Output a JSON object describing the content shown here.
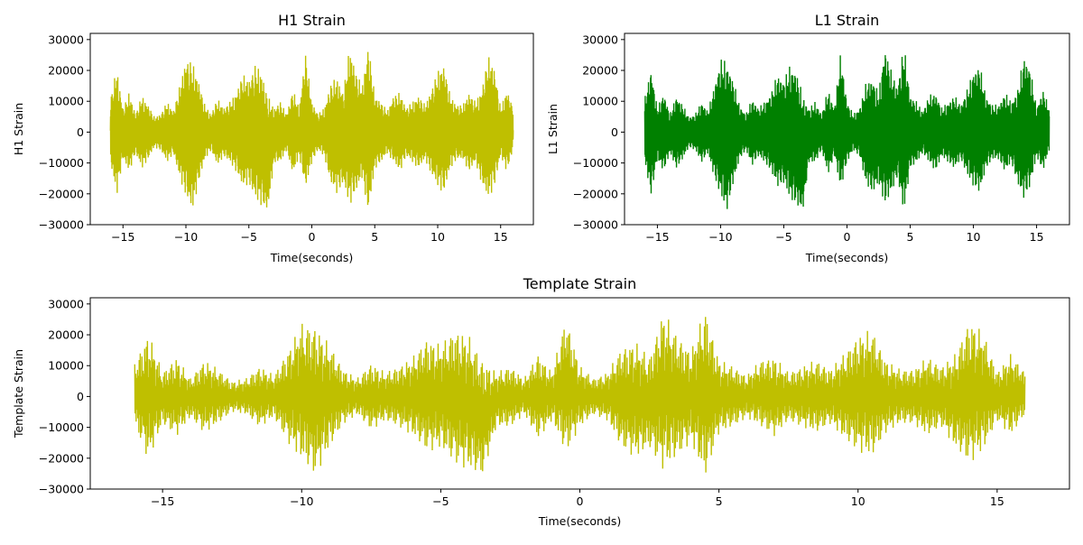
{
  "chart_data": [
    {
      "type": "line",
      "title": "H1 Strain",
      "xlabel": "Time(seconds)",
      "ylabel": "H1 Strain",
      "xlim": [
        -17.6,
        17.6
      ],
      "ylim": [
        -30000,
        32000
      ],
      "xticks": [
        -15,
        -10,
        -5,
        0,
        5,
        10,
        15
      ],
      "yticks": [
        -30000,
        -20000,
        -10000,
        0,
        10000,
        20000,
        30000
      ],
      "xtick_labels": [
        "−15",
        "−10",
        "−5",
        "0",
        "5",
        "10",
        "15"
      ],
      "ytick_labels": [
        "−30000",
        "−20000",
        "−10000",
        "0",
        "10000",
        "20000",
        "30000"
      ],
      "grid": false,
      "color": "#bfbf00",
      "series": [
        {
          "x": [
            -16,
            -15.5,
            -15,
            -14.5,
            -14,
            -13.5,
            -13,
            -12.5,
            -12,
            -11.5,
            -11,
            -10.5,
            -10,
            -9.5,
            -9,
            -8.5,
            -8,
            -7.5,
            -7,
            -6.5,
            -6,
            -5.5,
            -5,
            -4.5,
            -4,
            -3.5,
            -3,
            -2.5,
            -2,
            -1.5,
            -1,
            -0.5,
            0,
            0.5,
            1,
            1.5,
            2,
            2.5,
            3,
            3.5,
            4,
            4.5,
            5,
            5.5,
            6,
            6.5,
            7,
            7.5,
            8,
            8.5,
            9,
            9.5,
            10,
            10.5,
            11,
            11.5,
            12,
            12.5,
            13,
            13.5,
            14,
            14.5,
            15,
            15.5,
            16
          ],
          "y_max": [
            11000,
            21000,
            8000,
            13000,
            6000,
            12000,
            9000,
            5000,
            6000,
            10000,
            7000,
            15000,
            24000,
            23000,
            17000,
            9000,
            6000,
            11000,
            8000,
            10000,
            13000,
            19000,
            17000,
            22000,
            20000,
            12000,
            8000,
            10000,
            6000,
            14000,
            8000,
            26000,
            10000,
            6000,
            8000,
            16000,
            18000,
            13000,
            28000,
            20000,
            15000,
            29000,
            12000,
            10000,
            7000,
            12000,
            13000,
            8000,
            10000,
            12000,
            9000,
            14000,
            20000,
            22000,
            12000,
            9000,
            9000,
            13000,
            10000,
            14000,
            25000,
            21000,
            8000,
            14000,
            8000
          ],
          "y_min": [
            -10000,
            -21000,
            -9000,
            -13000,
            -7000,
            -12000,
            -9000,
            -5000,
            -6000,
            -10000,
            -7000,
            -15000,
            -21000,
            -26000,
            -17000,
            -9000,
            -6000,
            -11000,
            -8000,
            -10000,
            -13000,
            -18000,
            -17000,
            -22000,
            -24000,
            -26000,
            -10000,
            -10000,
            -6000,
            -14000,
            -8000,
            -19000,
            -10000,
            -6000,
            -8000,
            -17000,
            -20000,
            -17000,
            -24000,
            -20000,
            -15000,
            -27000,
            -12000,
            -10000,
            -7000,
            -10000,
            -13000,
            -8000,
            -10000,
            -12000,
            -9000,
            -14000,
            -18000,
            -20000,
            -12000,
            -9000,
            -9000,
            -13000,
            -10000,
            -17000,
            -22000,
            -18000,
            -8000,
            -13000,
            -6000
          ]
        }
      ]
    },
    {
      "type": "line",
      "title": "L1 Strain",
      "xlabel": "Time(seconds)",
      "ylabel": "L1 Strain",
      "xlim": [
        -17.6,
        17.6
      ],
      "ylim": [
        -30000,
        32000
      ],
      "xticks": [
        -15,
        -10,
        -5,
        0,
        5,
        10,
        15
      ],
      "yticks": [
        -30000,
        -20000,
        -10000,
        0,
        10000,
        20000,
        30000
      ],
      "xtick_labels": [
        "−15",
        "−10",
        "−5",
        "0",
        "5",
        "10",
        "15"
      ],
      "ytick_labels": [
        "−30000",
        "−20000",
        "−10000",
        "0",
        "10000",
        "20000",
        "30000"
      ],
      "grid": false,
      "color": "#008000",
      "series": [
        {
          "x": [
            -16,
            -15.5,
            -15,
            -14.5,
            -14,
            -13.5,
            -13,
            -12.5,
            -12,
            -11.5,
            -11,
            -10.5,
            -10,
            -9.5,
            -9,
            -8.5,
            -8,
            -7.5,
            -7,
            -6.5,
            -6,
            -5.5,
            -5,
            -4.5,
            -4,
            -3.5,
            -3,
            -2.5,
            -2,
            -1.5,
            -1,
            -0.5,
            0,
            0.5,
            1,
            1.5,
            2,
            2.5,
            3,
            3.5,
            4,
            4.5,
            5,
            5.5,
            6,
            6.5,
            7,
            7.5,
            8,
            8.5,
            9,
            9.5,
            10,
            10.5,
            11,
            11.5,
            12,
            12.5,
            13,
            13.5,
            14,
            14.5,
            15,
            15.5,
            16
          ],
          "y_max": [
            11000,
            21000,
            8000,
            13000,
            6000,
            12000,
            9000,
            5000,
            6000,
            10000,
            7000,
            15000,
            24000,
            23000,
            17000,
            9000,
            6000,
            11000,
            8000,
            10000,
            13000,
            19000,
            17000,
            22000,
            20000,
            12000,
            8000,
            10000,
            6000,
            14000,
            8000,
            26000,
            10000,
            6000,
            8000,
            16000,
            18000,
            13000,
            28000,
            20000,
            15000,
            29000,
            12000,
            10000,
            7000,
            12000,
            13000,
            8000,
            10000,
            12000,
            9000,
            14000,
            20000,
            22000,
            12000,
            9000,
            9000,
            13000,
            10000,
            14000,
            25000,
            21000,
            8000,
            14000,
            8000
          ],
          "y_min": [
            -10000,
            -21000,
            -9000,
            -13000,
            -7000,
            -12000,
            -9000,
            -5000,
            -6000,
            -10000,
            -7000,
            -15000,
            -21000,
            -26000,
            -17000,
            -9000,
            -6000,
            -11000,
            -8000,
            -10000,
            -13000,
            -18000,
            -17000,
            -22000,
            -24000,
            -26000,
            -10000,
            -10000,
            -6000,
            -14000,
            -8000,
            -19000,
            -10000,
            -6000,
            -8000,
            -17000,
            -20000,
            -17000,
            -24000,
            -20000,
            -15000,
            -27000,
            -12000,
            -10000,
            -7000,
            -10000,
            -13000,
            -8000,
            -10000,
            -12000,
            -9000,
            -14000,
            -18000,
            -20000,
            -12000,
            -9000,
            -9000,
            -13000,
            -10000,
            -17000,
            -22000,
            -18000,
            -8000,
            -13000,
            -6000
          ]
        }
      ]
    },
    {
      "type": "line",
      "title": "Template Strain",
      "xlabel": "Time(seconds)",
      "ylabel": "Template Strain",
      "xlim": [
        -17.6,
        17.6
      ],
      "ylim": [
        -30000,
        32000
      ],
      "xticks": [
        -15,
        -10,
        -5,
        0,
        5,
        10,
        15
      ],
      "yticks": [
        -30000,
        -20000,
        -10000,
        0,
        10000,
        20000,
        30000
      ],
      "xtick_labels": [
        "−15",
        "−10",
        "−5",
        "0",
        "5",
        "10",
        "15"
      ],
      "ytick_labels": [
        "−30000",
        "−20000",
        "−10000",
        "0",
        "10000",
        "20000",
        "30000"
      ],
      "grid": false,
      "color": "#bfbf00",
      "series": [
        {
          "x": [
            -16,
            -15.5,
            -15,
            -14.5,
            -14,
            -13.5,
            -13,
            -12.5,
            -12,
            -11.5,
            -11,
            -10.5,
            -10,
            -9.5,
            -9,
            -8.5,
            -8,
            -7.5,
            -7,
            -6.5,
            -6,
            -5.5,
            -5,
            -4.5,
            -4,
            -3.5,
            -3,
            -2.5,
            -2,
            -1.5,
            -1,
            -0.5,
            0,
            0.5,
            1,
            1.5,
            2,
            2.5,
            3,
            3.5,
            4,
            4.5,
            5,
            5.5,
            6,
            6.5,
            7,
            7.5,
            8,
            8.5,
            9,
            9.5,
            10,
            10.5,
            11,
            11.5,
            12,
            12.5,
            13,
            13.5,
            14,
            14.5,
            15,
            15.5,
            16
          ],
          "y_max": [
            11000,
            21000,
            8000,
            13000,
            6000,
            12000,
            9000,
            5000,
            6000,
            10000,
            7000,
            15000,
            24000,
            23000,
            17000,
            9000,
            6000,
            11000,
            8000,
            10000,
            13000,
            19000,
            17000,
            22000,
            20000,
            12000,
            8000,
            10000,
            6000,
            14000,
            8000,
            26000,
            10000,
            6000,
            8000,
            16000,
            18000,
            13000,
            28000,
            20000,
            15000,
            29000,
            12000,
            10000,
            7000,
            12000,
            13000,
            8000,
            10000,
            12000,
            9000,
            14000,
            20000,
            22000,
            12000,
            9000,
            9000,
            13000,
            10000,
            14000,
            25000,
            21000,
            8000,
            14000,
            8000
          ],
          "y_min": [
            -10000,
            -21000,
            -9000,
            -13000,
            -7000,
            -12000,
            -9000,
            -5000,
            -6000,
            -10000,
            -7000,
            -15000,
            -21000,
            -26000,
            -17000,
            -9000,
            -6000,
            -11000,
            -8000,
            -10000,
            -13000,
            -18000,
            -17000,
            -22000,
            -24000,
            -26000,
            -10000,
            -10000,
            -6000,
            -14000,
            -8000,
            -19000,
            -10000,
            -6000,
            -8000,
            -17000,
            -20000,
            -17000,
            -24000,
            -20000,
            -15000,
            -27000,
            -12000,
            -10000,
            -7000,
            -10000,
            -13000,
            -8000,
            -10000,
            -12000,
            -9000,
            -14000,
            -18000,
            -20000,
            -12000,
            -9000,
            -9000,
            -13000,
            -10000,
            -17000,
            -22000,
            -18000,
            -8000,
            -13000,
            -6000
          ]
        }
      ]
    }
  ]
}
